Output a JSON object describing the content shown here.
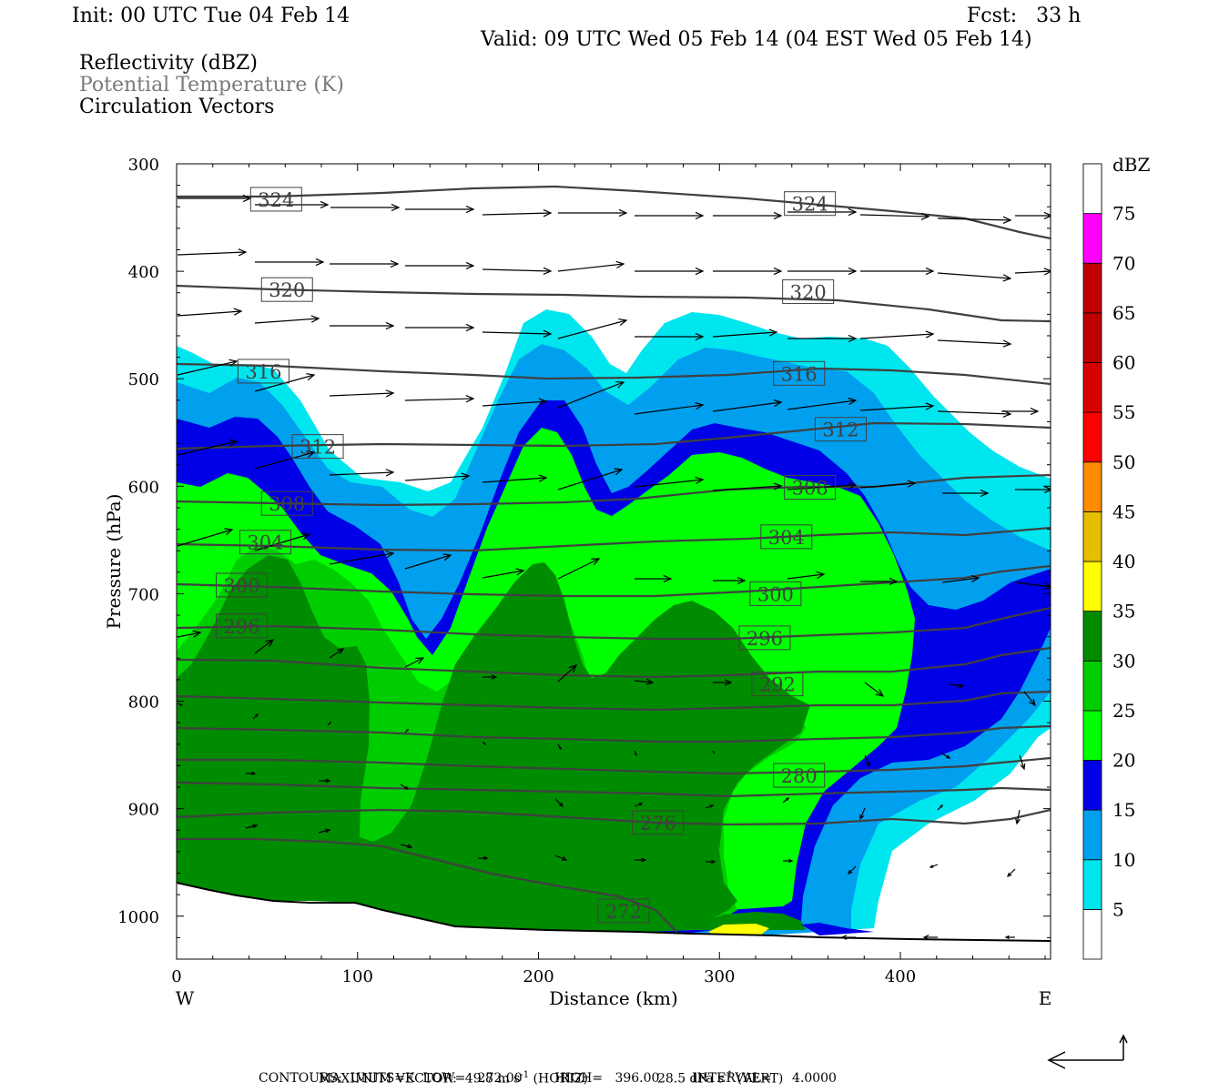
{
  "header": {
    "init": "Init: 00 UTC Tue 04 Feb 14",
    "fcst": "Fcst:   33 h",
    "valid": "Valid: 09 UTC Wed 05 Feb 14 (04 EST Wed 05 Feb 14)",
    "fields": [
      "Reflectivity (dBZ)",
      "Potential Temperature (K)",
      "Circulation Vectors"
    ]
  },
  "footer": {
    "line1_a": "MAXIMUM VECTOR:  49.8 m s",
    "line1_sup1": "-1",
    "line1_b": " (HORIZ)",
    "line1_c": "28.5 dPa s",
    "line1_sup2": "-1",
    "line1_d": " (VERT)",
    "line2": "CONTOURS:  UNITS=K  LOW=   272.00        HIGH=   396.00        INTERVAL=     4.0000"
  },
  "colors": {
    "c5": "#00e6ee",
    "c10": "#00a0ee",
    "c15": "#0000e6",
    "c20": "#00ff00",
    "c25": "#00cd00",
    "c30": "#008c00",
    "c35": "#ffff00",
    "c40": "#e6be00",
    "c45": "#ff8c00",
    "c50": "#ff0000",
    "c55": "#d70000",
    "c60": "#bf0000",
    "c65": "#c00000",
    "c70": "#ff00ff",
    "c75": "#9955c9",
    "contour": "#404040"
  },
  "chart_data": {
    "type": "cross-section",
    "xlabel": "Distance (km)",
    "ylabel": "Pressure (hPa)",
    "x_ticks": [
      "0",
      "100",
      "200",
      "300",
      "400"
    ],
    "x_tick_values": [
      0,
      100,
      200,
      300,
      400
    ],
    "xlim": [
      0,
      483
    ],
    "y_ticks": [
      "300",
      "400",
      "500",
      "600",
      "700",
      "800",
      "900",
      "1000"
    ],
    "y_tick_values": [
      300,
      400,
      500,
      600,
      700,
      800,
      900,
      1000
    ],
    "ylim": [
      300,
      1040
    ],
    "left_end_label": "W",
    "right_end_label": "E",
    "colorbar": {
      "title": "dBZ",
      "levels": [
        "5",
        "10",
        "15",
        "20",
        "25",
        "30",
        "35",
        "40",
        "45",
        "50",
        "55",
        "60",
        "65",
        "70",
        "75"
      ]
    },
    "contour_labels": [
      {
        "text": "324",
        "x": 55,
        "p": 333
      },
      {
        "text": "324",
        "x": 350,
        "p": 337
      },
      {
        "text": "320",
        "x": 61,
        "p": 417
      },
      {
        "text": "320",
        "x": 349,
        "p": 419
      },
      {
        "text": "316",
        "x": 48,
        "p": 493
      },
      {
        "text": "316",
        "x": 344,
        "p": 495
      },
      {
        "text": "312",
        "x": 78,
        "p": 563
      },
      {
        "text": "312",
        "x": 367,
        "p": 547
      },
      {
        "text": "308",
        "x": 61,
        "p": 616
      },
      {
        "text": "308",
        "x": 350,
        "p": 601
      },
      {
        "text": "304",
        "x": 49,
        "p": 652
      },
      {
        "text": "304",
        "x": 337,
        "p": 647
      },
      {
        "text": "300",
        "x": 36,
        "p": 692
      },
      {
        "text": "300",
        "x": 331,
        "p": 700
      },
      {
        "text": "296",
        "x": 36,
        "p": 730
      },
      {
        "text": "296",
        "x": 325,
        "p": 741
      },
      {
        "text": "292",
        "x": 332,
        "p": 784
      },
      {
        "text": "280",
        "x": 344,
        "p": 869
      },
      {
        "text": "276",
        "x": 266,
        "p": 913
      },
      {
        "text": "272",
        "x": 247,
        "p": 995
      }
    ]
  }
}
